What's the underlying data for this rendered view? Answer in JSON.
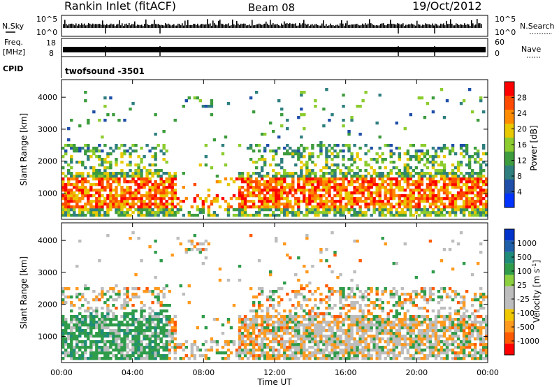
{
  "header": {
    "station": "Rankin Inlet (fitACF)",
    "beam": "Beam 08",
    "date": "19/Oct/2012"
  },
  "panels": {
    "nsky": {
      "left_label": "N.Sky",
      "right_label": "N.Search",
      "left_ticks": [
        "10^5",
        "10^0"
      ],
      "right_ticks": [
        "10^5",
        "10^0"
      ]
    },
    "freq": {
      "left_label_top": "Freq.",
      "left_label_unit": "[MHz]",
      "left_ticks": [
        "18",
        "8"
      ],
      "right_label": "Nave",
      "right_ticks": [
        "60",
        "0"
      ]
    },
    "cpid": {
      "left_label": "CPID",
      "program": "twofsound -3501"
    }
  },
  "colors": {
    "power": [
      "#0033ff",
      "#1f4fa8",
      "#2f7f7f",
      "#3d9c3d",
      "#8ccc2f",
      "#e8c800",
      "#ff8c00",
      "#ff4a00",
      "#ff0000"
    ],
    "velocity": [
      "#ff0000",
      "#ff5a00",
      "#ff9a1e",
      "#f0c800",
      "#bdbdbd",
      "#bdbdbd",
      "#8cd040",
      "#2f9c4a",
      "#1f8c7a",
      "#1f5fa8",
      "#0033cc"
    ]
  },
  "chart_data": [
    {
      "type": "heatmap",
      "title": "",
      "xlabel": "",
      "ylabel": "Slant Range [km]",
      "x_ticks": [
        "00:00",
        "04:00",
        "08:00",
        "12:00",
        "16:00",
        "20:00",
        "00:00"
      ],
      "x_range_hours": [
        0,
        24
      ],
      "ylim": [
        180,
        4550
      ],
      "y_ticks": [
        1000,
        2000,
        3000,
        4000
      ],
      "colorbar": {
        "label": "Power [dB]",
        "ticks": [
          "4",
          "8",
          "12",
          "16",
          "20",
          "24",
          "28"
        ],
        "range": [
          0,
          32
        ]
      }
    },
    {
      "type": "heatmap",
      "title": "",
      "xlabel": "Time UT",
      "ylabel": "Slant Range [km]",
      "x_ticks": [
        "00:00",
        "04:00",
        "08:00",
        "12:00",
        "16:00",
        "20:00",
        "00:00"
      ],
      "x_range_hours": [
        0,
        24
      ],
      "ylim": [
        180,
        4550
      ],
      "y_ticks": [
        1000,
        2000,
        3000,
        4000
      ],
      "colorbar": {
        "label": "Velocity [m s^-1]",
        "ticks": [
          "1000",
          "500",
          "100",
          "25",
          "-25",
          "-100",
          "-500",
          "-1000"
        ]
      }
    }
  ]
}
